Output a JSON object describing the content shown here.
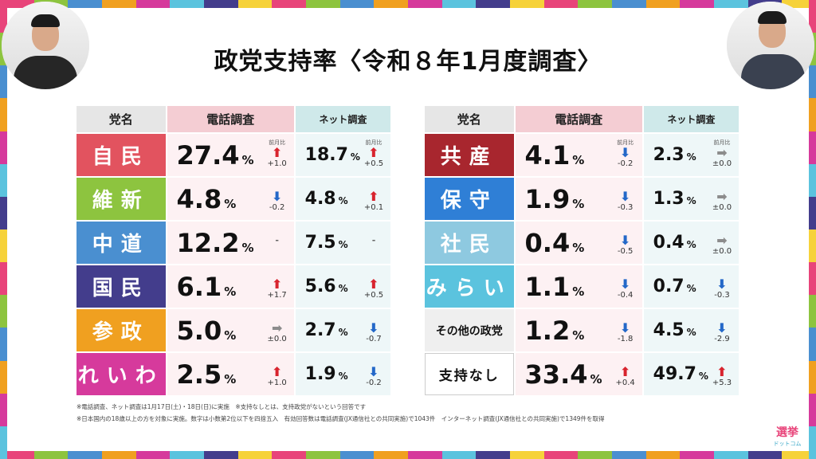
{
  "title": "政党支持率〈令和８年1月度調査〉",
  "headers": {
    "party": "党名",
    "phone": "電話調査",
    "net": "ネット調査"
  },
  "change_label": "前月比",
  "pct_sign": "%",
  "left_table": [
    {
      "party": "自民",
      "color": "#e2535f",
      "phone": "27.4",
      "phone_dir": "up",
      "phone_chg": "+1.0",
      "net": "18.7",
      "net_dir": "up",
      "net_chg": "+0.5"
    },
    {
      "party": "維新",
      "color": "#8dc43f",
      "phone": "4.8",
      "phone_dir": "down",
      "phone_chg": "-0.2",
      "net": "4.8",
      "net_dir": "up",
      "net_chg": "+0.1"
    },
    {
      "party": "中道",
      "color": "#4a8fd0",
      "phone": "12.2",
      "phone_dir": "none",
      "phone_chg": "",
      "net": "7.5",
      "net_dir": "none",
      "net_chg": ""
    },
    {
      "party": "国民",
      "color": "#433d8c",
      "phone": "6.1",
      "phone_dir": "up",
      "phone_chg": "+1.7",
      "net": "5.6",
      "net_dir": "up",
      "net_chg": "+0.5"
    },
    {
      "party": "参政",
      "color": "#f0a020",
      "phone": "5.0",
      "phone_dir": "flat",
      "phone_chg": "±0.0",
      "net": "2.7",
      "net_dir": "down",
      "net_chg": "-0.7"
    },
    {
      "party": "れいわ",
      "color": "#d63a9c",
      "phone": "2.5",
      "phone_dir": "up",
      "phone_chg": "+1.0",
      "net": "1.9",
      "net_dir": "down",
      "net_chg": "-0.2"
    }
  ],
  "right_table": [
    {
      "party": "共産",
      "color": "#a8262e",
      "phone": "4.1",
      "phone_dir": "down",
      "phone_chg": "-0.2",
      "net": "2.3",
      "net_dir": "flat",
      "net_chg": "±0.0"
    },
    {
      "party": "保守",
      "color": "#2f7fd6",
      "phone": "1.9",
      "phone_dir": "down",
      "phone_chg": "-0.3",
      "net": "1.3",
      "net_dir": "flat",
      "net_chg": "±0.0"
    },
    {
      "party": "社民",
      "color": "#8ec9e0",
      "phone": "0.4",
      "phone_dir": "down",
      "phone_chg": "-0.5",
      "net": "0.4",
      "net_dir": "flat",
      "net_chg": "±0.0"
    },
    {
      "party": "みらい",
      "color": "#5bc3de",
      "phone": "1.1",
      "phone_dir": "down",
      "phone_chg": "-0.4",
      "net": "0.7",
      "net_dir": "down",
      "net_chg": "-0.3"
    },
    {
      "party": "その他の政党",
      "color": "#efefef",
      "style": "small",
      "phone": "1.2",
      "phone_dir": "down",
      "phone_chg": "-1.8",
      "net": "4.5",
      "net_dir": "down",
      "net_chg": "-2.9"
    },
    {
      "party": "支持なし",
      "color": "#ffffff",
      "style": "mid",
      "phone": "33.4",
      "phone_dir": "up",
      "phone_chg": "+0.4",
      "net": "49.7",
      "net_dir": "up",
      "net_chg": "+5.3"
    }
  ],
  "notes": [
    "※電話調査、ネット調査は1月17日(土)・18日(日)に実施　※支持なしとは、支持政党がないという回答です",
    "※日本国内の18歳以上の方を対象に実施。数字は小数第2位以下を四捨五入　有効回答数は電話調査(JX通信社との共同実施)で1043件　インターネット調査(JX通信社との共同実施)で1349件を取得"
  ],
  "logo": {
    "line1": "選挙",
    "line2": "ドットコム"
  },
  "stripe_colors": [
    "#e8447a",
    "#8dc43f",
    "#4a8fd0",
    "#f0a020",
    "#d63a9c",
    "#5bc3de",
    "#433d8c",
    "#f6d23a"
  ]
}
